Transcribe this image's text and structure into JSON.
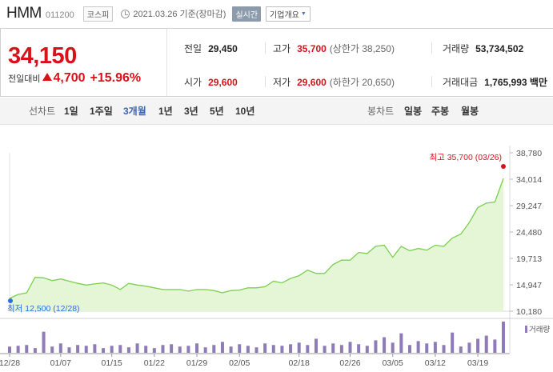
{
  "header": {
    "name": "HMM",
    "code": "011200",
    "market": "코스피",
    "date": "2021.03.26 기준(장마감)",
    "live": "실시간",
    "corp": "기업개요"
  },
  "summary": {
    "price": "34,150",
    "change_label": "전일대비",
    "change": "4,700",
    "change_rate": "+15.96%",
    "prev_close_label": "전일",
    "prev_close": "29,450",
    "high_label": "고가",
    "high": "35,700",
    "high_sub": "(상한가 38,250)",
    "volume_label": "거래량",
    "volume": "53,734,502",
    "open_label": "시가",
    "open": "29,600",
    "low_label": "저가",
    "low": "29,600",
    "low_sub": "(하한가 20,650)",
    "amount_label": "거래대금",
    "amount": "1,765,993 백만"
  },
  "tabs": {
    "line_label": "선차트",
    "line_tabs": [
      "1일",
      "1주일",
      "3개월",
      "1년",
      "3년",
      "5년",
      "10년"
    ],
    "active_line_tab": "3개월",
    "candle_label": "봉차트",
    "candle_tabs": [
      "일봉",
      "주봉",
      "월봉"
    ]
  },
  "colors": {
    "up": "#d9121a",
    "line": "#7ccf4f",
    "fill": "#e4f6d6",
    "volume": "#8f7bb7",
    "active_tab": "#3a67b8"
  },
  "chart_data": {
    "type": "area",
    "max_label": "최고 35,700 (03/26)",
    "min_label": "최저 12,500 (12/28)",
    "y_ticks": [
      38780,
      34014,
      29247,
      24480,
      19713,
      14947,
      10180
    ],
    "y_tick_labels": [
      "38,780",
      "34,014",
      "29,247",
      "24,480",
      "19,713",
      "14,947",
      "10,180"
    ],
    "ylim": [
      10180,
      38780
    ],
    "x_tick_labels": [
      "12/28",
      "01/07",
      "01/15",
      "01/22",
      "01/29",
      "02/05",
      "02/18",
      "02/26",
      "03/05",
      "03/12",
      "03/19"
    ],
    "x_tick_index": [
      0,
      6,
      12,
      17,
      22,
      27,
      34,
      40,
      45,
      50,
      55
    ],
    "volume_label": "거래량",
    "prices": [
      12500,
      13200,
      13500,
      16300,
      16200,
      15700,
      16000,
      15600,
      15200,
      14900,
      15100,
      15300,
      14900,
      14100,
      15200,
      14900,
      14700,
      14400,
      14100,
      14100,
      14100,
      13800,
      14100,
      14100,
      13900,
      13500,
      13900,
      14000,
      14400,
      14400,
      14600,
      15600,
      15300,
      16100,
      16600,
      17600,
      17000,
      17000,
      18600,
      19400,
      19400,
      20800,
      20600,
      21900,
      22100,
      19900,
      21900,
      21100,
      21500,
      21200,
      22100,
      21900,
      23400,
      24100,
      26200,
      28900,
      29700,
      29900,
      34150
    ],
    "volumes": [
      8,
      9,
      10,
      6,
      27,
      8,
      12,
      7,
      10,
      9,
      11,
      6,
      9,
      10,
      7,
      12,
      9,
      6,
      10,
      11,
      8,
      9,
      12,
      7,
      10,
      14,
      8,
      11,
      9,
      7,
      12,
      10,
      9,
      11,
      13,
      10,
      18,
      9,
      12,
      10,
      14,
      11,
      9,
      16,
      20,
      13,
      25,
      10,
      15,
      12,
      14,
      10,
      26,
      8,
      13,
      18,
      22,
      17,
      40
    ]
  }
}
